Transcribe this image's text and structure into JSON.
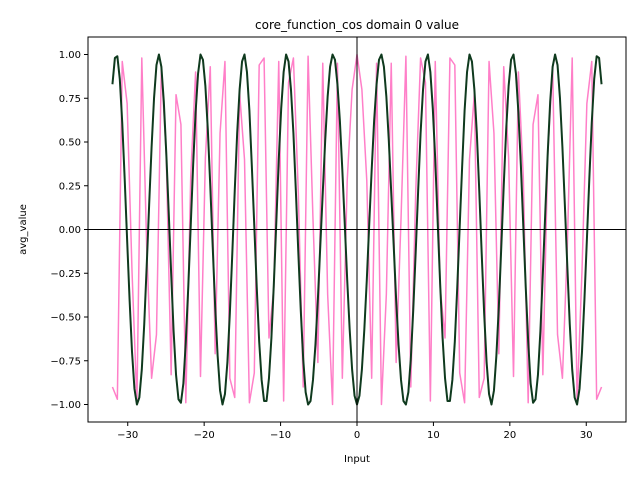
{
  "chart_data": {
    "type": "line",
    "title": "core_function_cos domain 0 value",
    "xlabel": "Input",
    "ylabel": "avg_value",
    "xlim": [
      -35.2,
      35.2
    ],
    "ylim": [
      -1.1,
      1.1
    ],
    "x_ticks": [
      -30,
      -20,
      -10,
      0,
      10,
      20,
      30
    ],
    "x_tick_labels": [
      "−30",
      "−20",
      "−10",
      "0",
      "10",
      "20",
      "30"
    ],
    "y_ticks": [
      -1.0,
      -0.75,
      -0.5,
      -0.25,
      0.0,
      0.25,
      0.5,
      0.75,
      1.0
    ],
    "y_tick_labels": [
      "−1.00",
      "−0.75",
      "−0.50",
      "−0.25",
      "0.00",
      "0.25",
      "0.50",
      "0.75",
      "1.00"
    ],
    "grid": false,
    "reference_lines": {
      "x": 0,
      "y": 0,
      "color": "#000000"
    },
    "series": [
      {
        "color": "#ff7fc8",
        "function": "aliased cosine, coarse sampling",
        "x_range": [
          -32,
          32
        ],
        "x": [
          -32.0,
          -31.36,
          -30.72,
          -30.08,
          -29.44,
          -28.8,
          -28.16,
          -27.52,
          -26.88,
          -26.24,
          -25.6,
          -24.96,
          -24.32,
          -23.68,
          -23.04,
          -22.4,
          -21.76,
          -21.12,
          -20.48,
          -19.84,
          -19.2,
          -18.56,
          -17.92,
          -17.28,
          -16.64,
          -16.0,
          -15.36,
          -14.72,
          -14.08,
          -13.44,
          -12.8,
          -12.16,
          -11.52,
          -10.88,
          -10.24,
          -9.6,
          -8.96,
          -8.32,
          -7.68,
          -7.04,
          -6.4,
          -5.76,
          -5.12,
          -4.48,
          -3.84,
          -3.2,
          -2.56,
          -1.92,
          -1.28,
          -0.64,
          0.0,
          0.64,
          1.28,
          1.92,
          2.56,
          3.2,
          3.84,
          4.48,
          5.12,
          5.76,
          6.4,
          7.04,
          7.68,
          8.32,
          8.96,
          9.6,
          10.24,
          10.88,
          11.52,
          12.16,
          12.8,
          13.44,
          14.08,
          14.72,
          15.36,
          16.0,
          16.64,
          17.28,
          17.92,
          18.56,
          19.2,
          19.84,
          20.48,
          21.12,
          21.76,
          22.4,
          23.04,
          23.68,
          24.32,
          24.96,
          25.6,
          26.24,
          26.88,
          27.52,
          28.16,
          28.8,
          29.44,
          30.08,
          30.72,
          31.36,
          32.0
        ],
        "y": [
          -0.9,
          -0.97,
          0.96,
          0.72,
          -0.24,
          -0.99,
          0.98,
          -0.1,
          -0.85,
          -0.6,
          0.93,
          0.42,
          -0.83,
          0.77,
          0.6,
          -0.99,
          0.3,
          0.9,
          -0.84,
          0.41,
          0.93,
          -0.71,
          0.55,
          0.96,
          -0.85,
          -0.96,
          0.78,
          0.4,
          -0.99,
          -0.82,
          0.94,
          0.98,
          -0.62,
          -0.33,
          0.96,
          -0.98,
          0.84,
          0.98,
          0.21,
          -0.9,
          0.99,
          0.06,
          -0.76,
          0.95,
          -0.37,
          -1.0,
          0.95,
          -0.85,
          0.28,
          0.8,
          1.0,
          0.8,
          0.28,
          -0.85,
          0.95,
          -1.0,
          -0.37,
          0.95,
          -0.76,
          0.06,
          0.99,
          -0.9,
          0.21,
          0.98,
          0.84,
          -0.98,
          0.96,
          -0.33,
          -0.62,
          0.98,
          0.94,
          -0.82,
          -0.99,
          0.4,
          0.78,
          -0.96,
          -0.85,
          0.96,
          0.55,
          -0.71,
          0.93,
          0.41,
          -0.84,
          0.9,
          0.3,
          -0.99,
          0.6,
          0.77,
          -0.83,
          0.42,
          0.93,
          -0.6,
          -0.85,
          -0.1,
          0.98,
          -0.99,
          -0.24,
          0.72,
          0.96,
          -0.97,
          -0.9
        ]
      },
      {
        "color": "#0f3a1e",
        "function": "cos(x)",
        "x_range": [
          -32,
          32
        ],
        "x": [
          -32.0,
          -31.68,
          -31.36,
          -31.04,
          -30.72,
          -30.4,
          -30.08,
          -29.76,
          -29.44,
          -29.12,
          -28.8,
          -28.48,
          -28.16,
          -27.84,
          -27.52,
          -27.2,
          -26.88,
          -26.56,
          -26.24,
          -25.92,
          -25.6,
          -25.28,
          -24.96,
          -24.64,
          -24.32,
          -24.0,
          -23.68,
          -23.36,
          -23.04,
          -22.72,
          -22.4,
          -22.08,
          -21.76,
          -21.44,
          -21.12,
          -20.8,
          -20.48,
          -20.16,
          -19.84,
          -19.52,
          -19.2,
          -18.88,
          -18.56,
          -18.24,
          -17.92,
          -17.6,
          -17.28,
          -16.96,
          -16.64,
          -16.32,
          -16.0,
          -15.68,
          -15.36,
          -15.04,
          -14.72,
          -14.4,
          -14.08,
          -13.76,
          -13.44,
          -13.12,
          -12.8,
          -12.48,
          -12.16,
          -11.84,
          -11.52,
          -11.2,
          -10.88,
          -10.56,
          -10.24,
          -9.92,
          -9.6,
          -9.28,
          -8.96,
          -8.64,
          -8.32,
          -8.0,
          -7.68,
          -7.36,
          -7.04,
          -6.72,
          -6.4,
          -6.08,
          -5.76,
          -5.44,
          -5.12,
          -4.8,
          -4.48,
          -4.16,
          -3.84,
          -3.52,
          -3.2,
          -2.88,
          -2.56,
          -2.24,
          -1.92,
          -1.6,
          -1.28,
          -0.96,
          -0.64,
          -0.32,
          0.0,
          0.32,
          0.64,
          0.96,
          1.28,
          1.6,
          1.92,
          2.24,
          2.56,
          2.88,
          3.2,
          3.52,
          3.84,
          4.16,
          4.48,
          4.8,
          5.12,
          5.44,
          5.76,
          6.08,
          6.4,
          6.72,
          7.04,
          7.36,
          7.68,
          8.0,
          8.32,
          8.64,
          8.96,
          9.28,
          9.6,
          9.92,
          10.24,
          10.56,
          10.88,
          11.2,
          11.52,
          11.84,
          12.16,
          12.48,
          12.8,
          13.12,
          13.44,
          13.76,
          14.08,
          14.4,
          14.72,
          15.04,
          15.36,
          15.68,
          16.0,
          16.32,
          16.64,
          16.96,
          17.28,
          17.6,
          17.92,
          18.24,
          18.56,
          18.88,
          19.2,
          19.52,
          19.84,
          20.16,
          20.48,
          20.8,
          21.12,
          21.44,
          21.76,
          22.08,
          22.4,
          22.72,
          23.04,
          23.36,
          23.68,
          24.0,
          24.32,
          24.64,
          24.96,
          25.28,
          25.6,
          25.92,
          26.24,
          26.56,
          26.88,
          27.2,
          27.52,
          27.84,
          28.16,
          28.48,
          28.8,
          29.12,
          29.44,
          29.76,
          30.08,
          30.4,
          30.72,
          31.04,
          31.36,
          31.68,
          32.0
        ],
        "y": [
          0.83,
          0.98,
          0.99,
          0.86,
          0.61,
          0.29,
          -0.06,
          -0.4,
          -0.7,
          -0.91,
          -1.0,
          -0.96,
          -0.8,
          -0.54,
          -0.21,
          0.14,
          0.47,
          0.75,
          0.94,
          1.0,
          0.93,
          0.73,
          0.44,
          0.1,
          -0.25,
          -0.58,
          -0.83,
          -0.97,
          -0.99,
          -0.88,
          -0.64,
          -0.33,
          0.02,
          0.37,
          0.67,
          0.89,
          1.0,
          0.97,
          0.82,
          0.57,
          0.25,
          -0.1,
          -0.44,
          -0.72,
          -0.92,
          -1.0,
          -0.94,
          -0.76,
          -0.48,
          -0.14,
          0.22,
          0.55,
          0.8,
          0.96,
          1.0,
          0.9,
          0.68,
          0.36,
          0.02,
          -0.33,
          -0.64,
          -0.86,
          -0.98,
          -0.98,
          -0.85,
          -0.62,
          -0.31,
          0.04,
          0.4,
          0.69,
          0.9,
          1.0,
          0.96,
          0.8,
          0.55,
          0.22,
          -0.13,
          -0.46,
          -0.74,
          -0.93,
          -1.0,
          -0.98,
          -0.86,
          -0.66,
          -0.4,
          -0.09,
          0.21,
          0.51,
          0.76,
          0.93,
          1.0,
          0.97,
          0.83,
          0.62,
          0.34,
          0.03,
          -0.29,
          -0.57,
          -0.8,
          -0.95,
          -1.0,
          -0.95,
          -0.8,
          -0.57,
          -0.29,
          0.03,
          0.34,
          0.62,
          0.83,
          0.97,
          1.0,
          0.93,
          0.76,
          0.51,
          0.21,
          -0.09,
          -0.4,
          -0.66,
          -0.86,
          -0.98,
          -1.0,
          -0.93,
          -0.74,
          -0.46,
          -0.13,
          0.22,
          0.55,
          0.8,
          0.96,
          1.0,
          0.9,
          0.69,
          0.4,
          0.04,
          -0.31,
          -0.62,
          -0.85,
          -0.98,
          -0.98,
          -0.86,
          -0.64,
          -0.33,
          0.02,
          0.36,
          0.68,
          0.9,
          1.0,
          0.96,
          0.8,
          0.55,
          0.22,
          -0.14,
          -0.48,
          -0.76,
          -0.94,
          -1.0,
          -0.92,
          -0.72,
          -0.44,
          -0.1,
          0.25,
          0.57,
          0.82,
          0.97,
          1.0,
          0.89,
          0.67,
          0.37,
          0.02,
          -0.33,
          -0.64,
          -0.88,
          -0.99,
          -0.97,
          -0.83,
          -0.58,
          -0.25,
          0.1,
          0.44,
          0.73,
          0.93,
          1.0,
          0.94,
          0.75,
          0.47,
          0.14,
          -0.21,
          -0.54,
          -0.8,
          -0.96,
          -1.0,
          -0.91,
          -0.7,
          -0.4,
          -0.06,
          0.29,
          0.61,
          0.86,
          0.99,
          0.98,
          0.83
        ]
      }
    ]
  }
}
